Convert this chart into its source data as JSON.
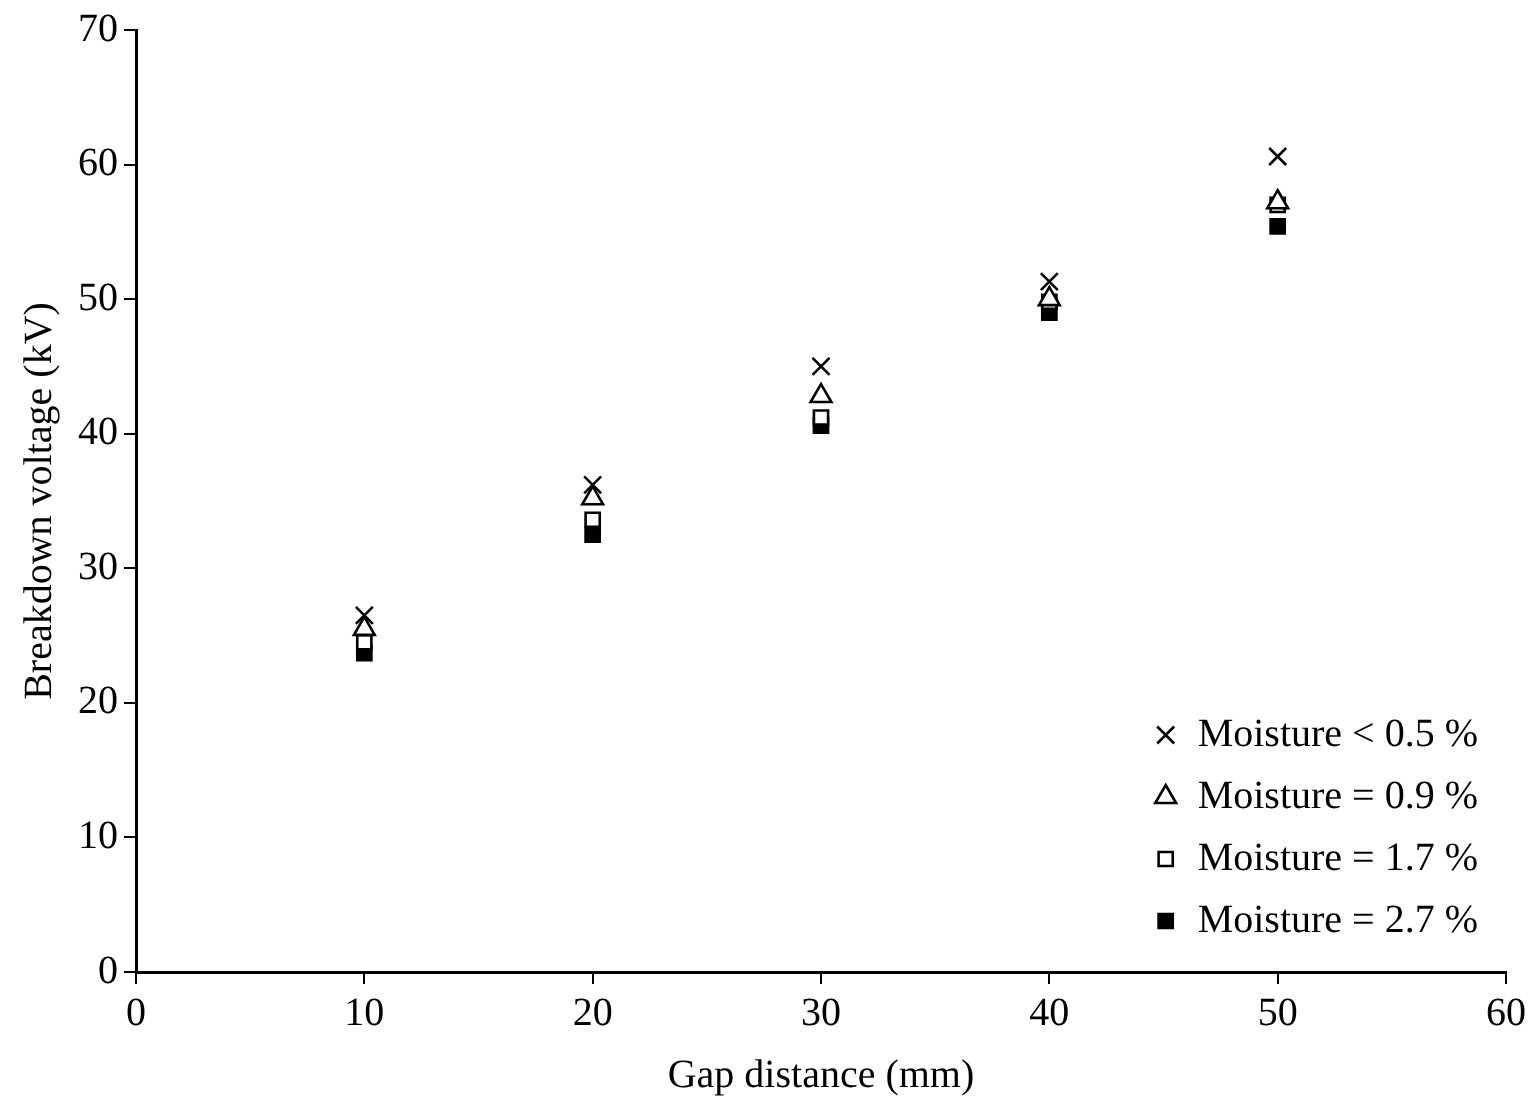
{
  "chart_data": {
    "type": "scatter",
    "xlabel": "Gap distance (mm)",
    "ylabel": "Breakdown voltage (kV)",
    "x": [
      10,
      20,
      30,
      40,
      50
    ],
    "series": [
      {
        "name": "Moisture < 0.5 %",
        "color": "#000000",
        "marker": "cross",
        "values": [
          26.5,
          36.2,
          45,
          51.3,
          60.6
        ]
      },
      {
        "name": "Moisture = 0.9 %",
        "color": "#000000",
        "marker": "triangle",
        "values": [
          25.5,
          35.2,
          42.8,
          50,
          57.2
        ]
      },
      {
        "name": "Moisture = 1.7 %",
        "color": "#000000",
        "marker": "square",
        "values": [
          24.5,
          33.6,
          41.2,
          49.8,
          57
        ]
      },
      {
        "name": "Moisture = 2.7 %",
        "color": "#000000",
        "marker": "square",
        "values": [
          23.7,
          32.5,
          40.6,
          49,
          55.4
        ]
      }
    ],
    "xlim": [
      0,
      60
    ],
    "xticks": [
      0,
      10,
      20,
      30,
      40,
      50,
      60
    ],
    "ylim": [
      0,
      70
    ],
    "yticks": [
      0,
      10,
      20,
      30,
      40,
      50,
      60,
      70
    ],
    "grid": false,
    "legend": "bottom right"
  }
}
